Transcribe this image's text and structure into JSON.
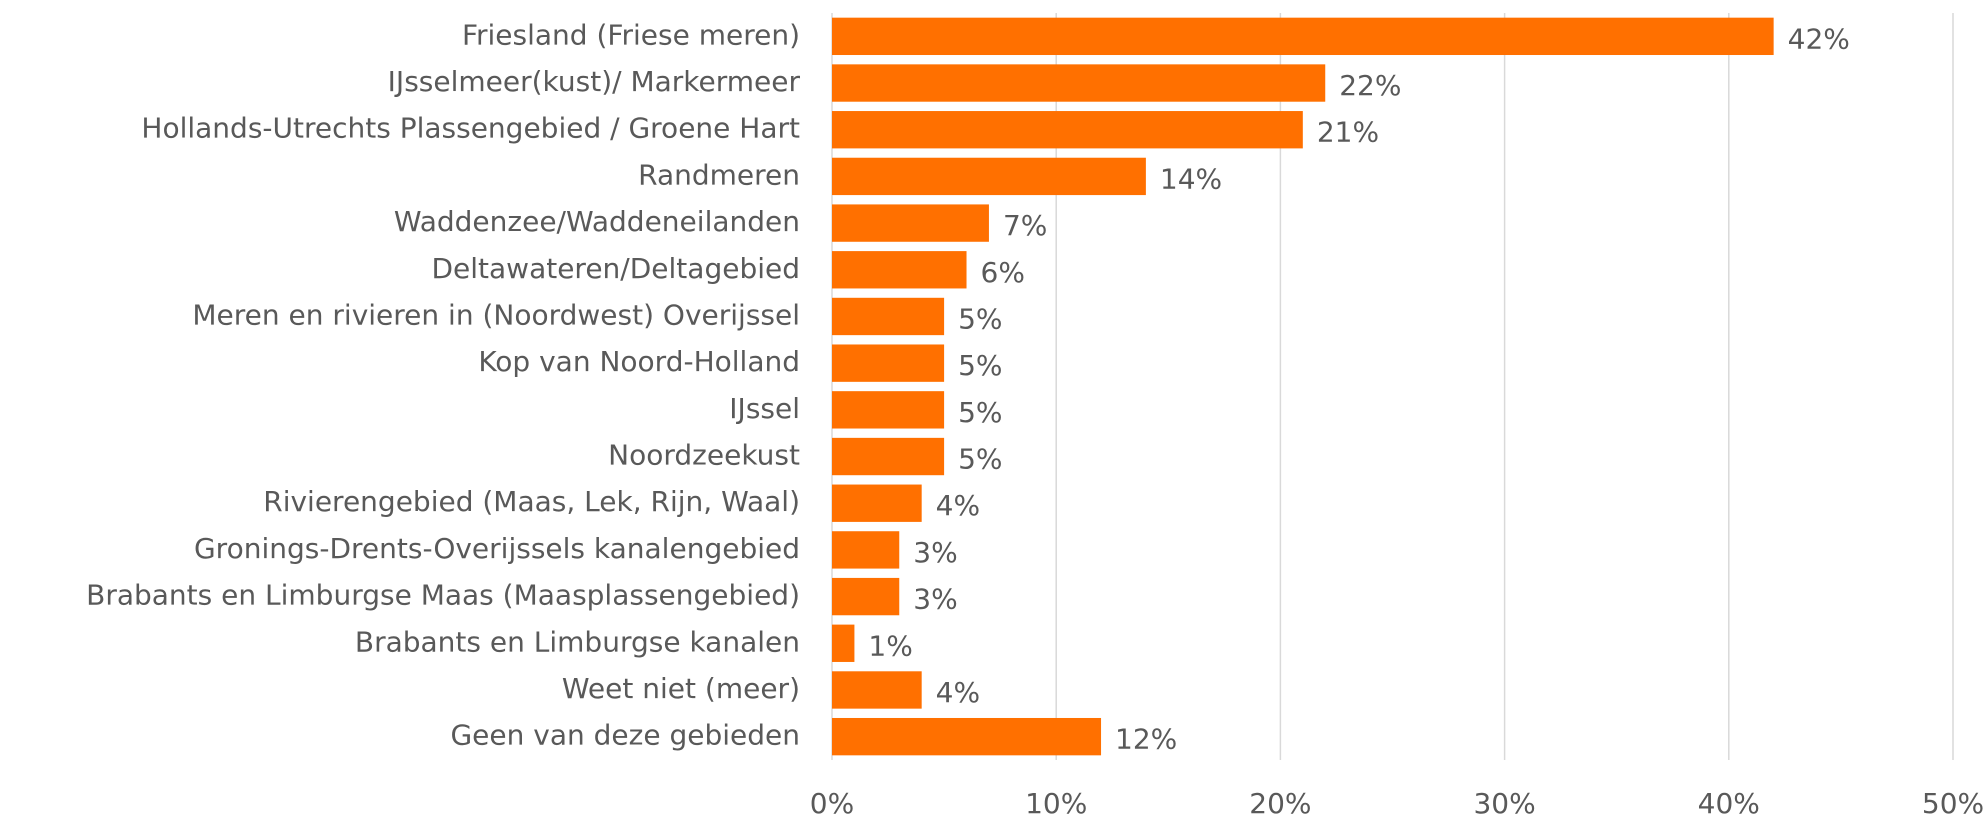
{
  "chart_data": {
    "type": "bar",
    "orientation": "horizontal",
    "categories": [
      "Friesland (Friese meren)",
      "IJsselmeer(kust)/ Markermeer",
      "Hollands-Utrechts Plassengebied / Groene Hart",
      "Randmeren",
      "Waddenzee/Waddeneilanden",
      "Deltawateren/Deltagebied",
      "Meren en rivieren in (Noordwest) Overijssel",
      "Kop van Noord-Holland",
      "IJssel",
      "Noordzeekust",
      "Rivierengebied (Maas, Lek, Rijn, Waal)",
      "Gronings-Drents-Overijssels kanalengebied",
      "Brabants en Limburgse Maas (Maasplassengebied)",
      "Brabants en Limburgse kanalen",
      "Weet niet (meer)",
      "Geen van deze gebieden"
    ],
    "values": [
      42,
      22,
      21,
      14,
      7,
      6,
      5,
      5,
      5,
      5,
      4,
      3,
      3,
      1,
      4,
      12
    ],
    "value_labels": [
      "42%",
      "22%",
      "21%",
      "14%",
      "7%",
      "6%",
      "5%",
      "5%",
      "5%",
      "5%",
      "4%",
      "3%",
      "3%",
      "1%",
      "4%",
      "12%"
    ],
    "color": "#ff7000",
    "xlim": [
      0,
      50
    ],
    "xticks": [
      {
        "value": 0,
        "label": "0%"
      },
      {
        "value": 10,
        "label": "10%"
      },
      {
        "value": 20,
        "label": "20%"
      },
      {
        "value": 30,
        "label": "30%"
      },
      {
        "value": 40,
        "label": "40%"
      },
      {
        "value": 50,
        "label": "50%"
      }
    ],
    "grid": true
  }
}
